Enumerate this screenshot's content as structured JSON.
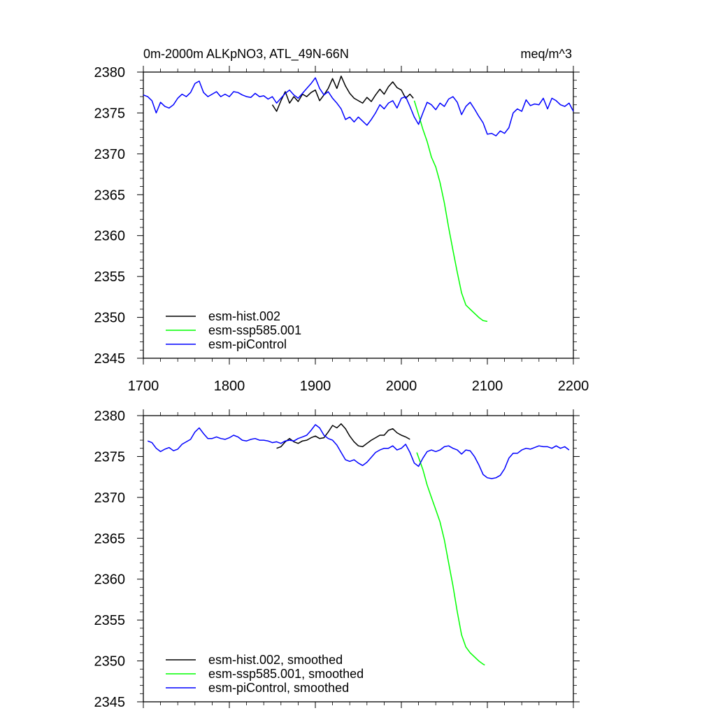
{
  "chart_data": [
    {
      "type": "line",
      "title": "0m-2000m ALKpNO3, ATL_49N-66N",
      "units": "meq/m^3",
      "xlim": [
        1700,
        2200
      ],
      "ylim": [
        2345,
        2380
      ],
      "x_ticks": [
        1700,
        1800,
        1900,
        2000,
        2100,
        2200
      ],
      "y_ticks": [
        2345,
        2350,
        2355,
        2360,
        2365,
        2370,
        2375,
        2380
      ],
      "legend_position": "bottom-left",
      "grid": false,
      "series": [
        {
          "name": "esm-hist.002",
          "color": "#000000",
          "x": [
            1850,
            1855,
            1860,
            1865,
            1870,
            1875,
            1880,
            1885,
            1890,
            1895,
            1900,
            1905,
            1910,
            1915,
            1920,
            1925,
            1930,
            1935,
            1940,
            1945,
            1950,
            1955,
            1960,
            1965,
            1970,
            1975,
            1980,
            1985,
            1990,
            1995,
            2000,
            2005,
            2010,
            2014
          ],
          "y": [
            2376.0,
            2375.2,
            2376.5,
            2377.6,
            2376.2,
            2377.0,
            2376.4,
            2377.3,
            2377.0,
            2377.5,
            2377.8,
            2376.5,
            2377.2,
            2378.0,
            2379.2,
            2378.0,
            2379.5,
            2378.3,
            2377.4,
            2376.8,
            2376.5,
            2376.2,
            2376.9,
            2376.4,
            2377.2,
            2377.9,
            2377.3,
            2378.2,
            2378.8,
            2378.1,
            2377.8,
            2376.8,
            2377.3,
            2376.8
          ]
        },
        {
          "name": "esm-ssp585.001",
          "color": "#00ff00",
          "x": [
            2015,
            2020,
            2025,
            2030,
            2035,
            2040,
            2045,
            2050,
            2055,
            2060,
            2065,
            2070,
            2075,
            2080,
            2085,
            2090,
            2095,
            2100
          ],
          "y": [
            2376.5,
            2374.8,
            2373.0,
            2371.5,
            2369.6,
            2368.4,
            2366.5,
            2364.0,
            2361.0,
            2358.2,
            2355.5,
            2353.0,
            2351.5,
            2351.0,
            2350.5,
            2350.0,
            2349.6,
            2349.5
          ]
        },
        {
          "name": "esm-piControl",
          "color": "#0000ff",
          "x": [
            1700,
            1705,
            1710,
            1715,
            1720,
            1725,
            1730,
            1735,
            1740,
            1745,
            1750,
            1755,
            1760,
            1765,
            1770,
            1775,
            1780,
            1785,
            1790,
            1795,
            1800,
            1805,
            1810,
            1815,
            1820,
            1825,
            1830,
            1835,
            1840,
            1845,
            1850,
            1855,
            1860,
            1865,
            1870,
            1875,
            1880,
            1885,
            1890,
            1895,
            1900,
            1905,
            1910,
            1915,
            1920,
            1925,
            1930,
            1935,
            1940,
            1945,
            1950,
            1955,
            1960,
            1965,
            1970,
            1975,
            1980,
            1985,
            1990,
            1995,
            2000,
            2005,
            2010,
            2015,
            2020,
            2025,
            2030,
            2035,
            2040,
            2045,
            2050,
            2055,
            2060,
            2065,
            2070,
            2075,
            2080,
            2085,
            2090,
            2095,
            2100,
            2105,
            2110,
            2115,
            2120,
            2125,
            2130,
            2135,
            2140,
            2145,
            2150,
            2155,
            2160,
            2165,
            2170,
            2175,
            2180,
            2185,
            2190,
            2195,
            2200
          ],
          "y": [
            2377.2,
            2377.0,
            2376.5,
            2375.0,
            2376.3,
            2375.8,
            2375.6,
            2376.0,
            2376.8,
            2377.3,
            2377.0,
            2377.5,
            2378.6,
            2378.9,
            2377.5,
            2377.0,
            2377.3,
            2377.6,
            2377.0,
            2377.3,
            2377.0,
            2377.6,
            2377.5,
            2377.2,
            2377.0,
            2376.9,
            2377.4,
            2377.0,
            2377.1,
            2376.7,
            2377.0,
            2376.2,
            2376.8,
            2377.4,
            2377.8,
            2377.2,
            2376.8,
            2377.4,
            2378.0,
            2378.6,
            2379.3,
            2378.0,
            2377.2,
            2377.6,
            2376.8,
            2376.2,
            2375.5,
            2374.2,
            2374.5,
            2373.9,
            2374.5,
            2374.0,
            2373.5,
            2374.2,
            2375.0,
            2376.0,
            2375.5,
            2376.2,
            2376.5,
            2375.6,
            2376.8,
            2377.0,
            2375.8,
            2374.5,
            2373.6,
            2375.0,
            2376.3,
            2376.0,
            2375.4,
            2376.2,
            2375.8,
            2376.7,
            2377.0,
            2376.3,
            2374.8,
            2375.8,
            2376.3,
            2375.5,
            2374.6,
            2373.8,
            2372.4,
            2372.5,
            2372.2,
            2372.8,
            2372.5,
            2373.2,
            2375.0,
            2375.5,
            2375.2,
            2376.6,
            2375.9,
            2376.1,
            2376.0,
            2376.8,
            2375.5,
            2376.8,
            2376.5,
            2376.0,
            2375.8,
            2376.2,
            2375.2
          ]
        }
      ]
    },
    {
      "type": "line",
      "title": "",
      "xlim": [
        1700,
        2200
      ],
      "ylim": [
        2345,
        2380
      ],
      "y_ticks": [
        2345,
        2350,
        2355,
        2360,
        2365,
        2370,
        2375,
        2380
      ],
      "legend_position": "bottom-left",
      "grid": false,
      "series": [
        {
          "name": "esm-hist.002, smoothed",
          "color": "#000000",
          "x": [
            1855,
            1860,
            1865,
            1870,
            1875,
            1880,
            1885,
            1890,
            1895,
            1900,
            1905,
            1910,
            1915,
            1920,
            1925,
            1930,
            1935,
            1940,
            1945,
            1950,
            1955,
            1960,
            1965,
            1970,
            1975,
            1980,
            1985,
            1990,
            1995,
            2000,
            2005,
            2010
          ],
          "y": [
            2376.0,
            2376.2,
            2376.8,
            2377.2,
            2376.8,
            2376.6,
            2376.9,
            2377.0,
            2377.3,
            2377.5,
            2377.2,
            2377.3,
            2378.0,
            2378.8,
            2378.5,
            2379.0,
            2378.4,
            2377.5,
            2376.8,
            2376.3,
            2376.2,
            2376.6,
            2377.0,
            2377.3,
            2377.6,
            2377.6,
            2378.2,
            2378.4,
            2377.9,
            2377.6,
            2377.4,
            2377.1
          ]
        },
        {
          "name": "esm-ssp585.001, smoothed",
          "color": "#00ff00",
          "x": [
            2018,
            2025,
            2030,
            2035,
            2040,
            2045,
            2050,
            2055,
            2060,
            2065,
            2070,
            2075,
            2080,
            2085,
            2090,
            2095,
            2097
          ],
          "y": [
            2375.5,
            2373.4,
            2371.5,
            2370.0,
            2368.5,
            2367.0,
            2364.8,
            2362.0,
            2359.2,
            2356.0,
            2353.2,
            2351.7,
            2351.0,
            2350.5,
            2350.0,
            2349.6,
            2349.5
          ]
        },
        {
          "name": "esm-piControl, smoothed",
          "color": "#0000ff",
          "x": [
            1705,
            1710,
            1715,
            1720,
            1725,
            1730,
            1735,
            1740,
            1745,
            1750,
            1755,
            1760,
            1765,
            1770,
            1775,
            1780,
            1785,
            1790,
            1795,
            1800,
            1805,
            1810,
            1815,
            1820,
            1825,
            1830,
            1835,
            1840,
            1845,
            1850,
            1855,
            1860,
            1865,
            1870,
            1875,
            1880,
            1885,
            1890,
            1895,
            1900,
            1905,
            1910,
            1915,
            1920,
            1925,
            1930,
            1935,
            1940,
            1945,
            1950,
            1955,
            1960,
            1965,
            1970,
            1975,
            1980,
            1985,
            1990,
            1995,
            2000,
            2005,
            2010,
            2015,
            2020,
            2025,
            2030,
            2035,
            2040,
            2045,
            2050,
            2055,
            2060,
            2065,
            2070,
            2075,
            2080,
            2085,
            2090,
            2095,
            2100,
            2105,
            2110,
            2115,
            2120,
            2125,
            2130,
            2135,
            2140,
            2145,
            2150,
            2155,
            2160,
            2165,
            2170,
            2175,
            2180,
            2185,
            2190,
            2195
          ],
          "y": [
            2376.9,
            2376.7,
            2376.0,
            2375.6,
            2375.9,
            2376.1,
            2375.7,
            2375.9,
            2376.5,
            2376.8,
            2377.1,
            2378.0,
            2378.5,
            2377.8,
            2377.2,
            2377.2,
            2377.4,
            2377.2,
            2377.1,
            2377.3,
            2377.6,
            2377.4,
            2377.0,
            2376.9,
            2377.1,
            2377.2,
            2377.0,
            2377.0,
            2376.9,
            2376.7,
            2376.8,
            2376.6,
            2376.9,
            2377.0,
            2376.9,
            2377.2,
            2377.4,
            2377.6,
            2378.2,
            2378.9,
            2378.5,
            2377.6,
            2377.2,
            2377.0,
            2376.4,
            2375.5,
            2374.6,
            2374.4,
            2374.6,
            2374.2,
            2373.9,
            2374.3,
            2374.9,
            2375.5,
            2375.8,
            2376.0,
            2376.0,
            2376.3,
            2375.8,
            2376.0,
            2376.5,
            2375.5,
            2374.2,
            2373.8,
            2374.8,
            2375.6,
            2375.8,
            2375.6,
            2375.8,
            2376.2,
            2376.3,
            2376.0,
            2375.8,
            2375.3,
            2375.8,
            2375.7,
            2375.0,
            2374.0,
            2372.8,
            2372.4,
            2372.3,
            2372.4,
            2372.7,
            2373.5,
            2374.8,
            2375.4,
            2375.4,
            2375.8,
            2376.0,
            2375.9,
            2376.1,
            2376.3,
            2376.2,
            2376.2,
            2376.0,
            2376.3,
            2376.0,
            2376.2,
            2375.8
          ]
        }
      ]
    }
  ]
}
